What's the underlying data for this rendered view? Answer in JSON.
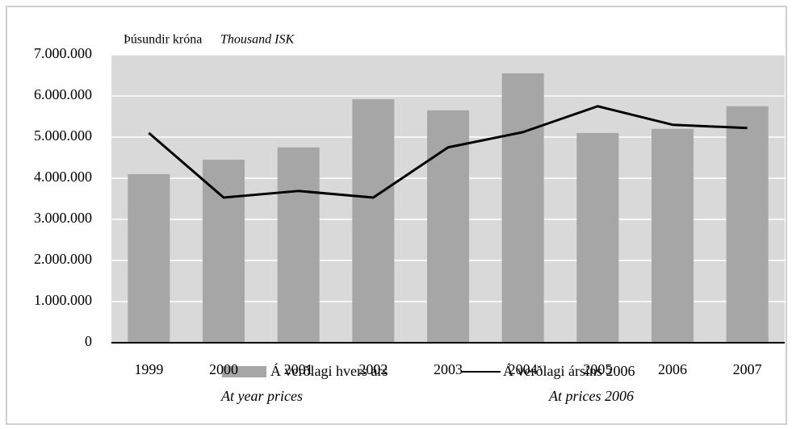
{
  "chart_data": {
    "type": "bar_line",
    "y_label": "Þúsundir króna",
    "y_label_en": "Thousand ISK",
    "categories": [
      "1999",
      "2000",
      "2001",
      "2002",
      "2003",
      "2004",
      "2005",
      "2006",
      "2007"
    ],
    "series": [
      {
        "name": "Á verðlagi hvers árs",
        "name_en": "At year prices",
        "type": "bar",
        "color": "#a6a6a6",
        "values": [
          4100000,
          4450000,
          4750000,
          5920000,
          5650000,
          6550000,
          5100000,
          5200000,
          5750000
        ]
      },
      {
        "name": "Á verðlagi ársins 2006",
        "name_en": "At prices 2006",
        "type": "line",
        "color": "#000000",
        "values": [
          5100000,
          3530000,
          3690000,
          3530000,
          4750000,
          5120000,
          5750000,
          5300000,
          5220000
        ]
      }
    ],
    "ylim": [
      0,
      7000000
    ],
    "yticks": [
      0,
      {
        "value": 1000000,
        "label": "1.000.000"
      },
      {
        "value": 2000000,
        "label": "2.000.000"
      },
      {
        "value": 3000000,
        "label": "3.000.000"
      },
      {
        "value": 4000000,
        "label": "4.000.000"
      },
      {
        "value": 5000000,
        "label": "5.000.000"
      },
      {
        "value": 6000000,
        "label": "6.000.000"
      },
      {
        "value": 7000000,
        "label": "7.000.000"
      }
    ],
    "grid": true
  }
}
